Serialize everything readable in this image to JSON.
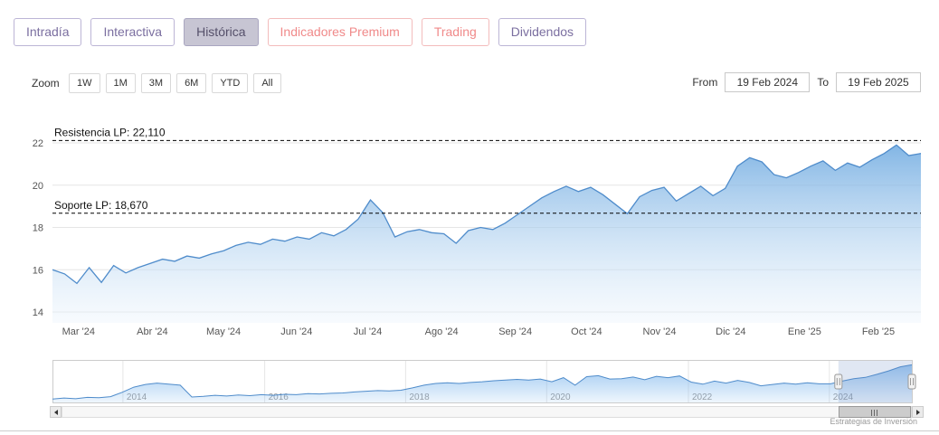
{
  "tabs": [
    {
      "label": "Intradía",
      "style": "purple",
      "selected": false
    },
    {
      "label": "Interactiva",
      "style": "purple",
      "selected": false
    },
    {
      "label": "Histórica",
      "style": "purple",
      "selected": true
    },
    {
      "label": "Indicadores Premium",
      "style": "salmon",
      "selected": false
    },
    {
      "label": "Trading",
      "style": "salmon",
      "selected": false
    },
    {
      "label": "Dividendos",
      "style": "purple",
      "selected": false
    }
  ],
  "toolbar": {
    "zoom_label": "Zoom",
    "range_buttons": [
      "1W",
      "1M",
      "3M",
      "6M",
      "YTD",
      "All"
    ],
    "from_label": "From",
    "from_value": "19 Feb 2024",
    "to_label": "To",
    "to_value": "19 Feb 2025"
  },
  "chart_data": {
    "type": "area",
    "title": "",
    "legend": false,
    "grid": true,
    "annotations": [
      {
        "label": "Resistencia LP: 22,110",
        "value": 22.11
      },
      {
        "label": "Soporte LP: 18,670",
        "value": 18.67
      }
    ],
    "main": {
      "xlabel": "",
      "ylabel": "",
      "ylim": [
        13.4,
        22.8
      ],
      "yticks": [
        14,
        16,
        18,
        20,
        22
      ],
      "xticks": [
        {
          "label": "Mar '24",
          "f": 0.03
        },
        {
          "label": "Abr '24",
          "f": 0.115
        },
        {
          "label": "May '24",
          "f": 0.197
        },
        {
          "label": "Jun '24",
          "f": 0.281
        },
        {
          "label": "Jul '24",
          "f": 0.363
        },
        {
          "label": "Ago '24",
          "f": 0.448
        },
        {
          "label": "Sep '24",
          "f": 0.533
        },
        {
          "label": "Oct '24",
          "f": 0.615
        },
        {
          "label": "Nov '24",
          "f": 0.699
        },
        {
          "label": "Dic '24",
          "f": 0.781
        },
        {
          "label": "Ene '25",
          "f": 0.866
        },
        {
          "label": "Feb '25",
          "f": 0.951
        }
      ],
      "values": [
        16.0,
        15.8,
        15.35,
        16.1,
        15.4,
        16.2,
        15.85,
        16.1,
        16.3,
        16.5,
        16.4,
        16.65,
        16.55,
        16.75,
        16.9,
        17.15,
        17.3,
        17.2,
        17.45,
        17.35,
        17.55,
        17.45,
        17.75,
        17.6,
        17.9,
        18.4,
        19.3,
        18.7,
        17.55,
        17.8,
        17.9,
        17.75,
        17.7,
        17.25,
        17.85,
        18.0,
        17.9,
        18.2,
        18.6,
        19.0,
        19.4,
        19.7,
        19.95,
        19.7,
        19.9,
        19.55,
        19.1,
        18.65,
        19.45,
        19.75,
        19.9,
        19.25,
        19.6,
        19.95,
        19.5,
        19.85,
        20.9,
        21.3,
        21.1,
        20.5,
        20.35,
        20.6,
        20.9,
        21.15,
        20.7,
        21.05,
        20.85,
        21.2,
        21.5,
        21.9,
        21.4,
        21.5
      ]
    },
    "navigator": {
      "ylim": [
        10.5,
        22.5
      ],
      "xticks": [
        {
          "label": "2014",
          "f": 0.082
        },
        {
          "label": "2016",
          "f": 0.247
        },
        {
          "label": "2018",
          "f": 0.411
        },
        {
          "label": "2020",
          "f": 0.575
        },
        {
          "label": "2022",
          "f": 0.74
        },
        {
          "label": "2024",
          "f": 0.904
        }
      ],
      "values": [
        11.5,
        11.8,
        11.6,
        12.0,
        11.9,
        12.2,
        13.5,
        15.0,
        15.8,
        16.2,
        15.9,
        15.6,
        12.1,
        12.3,
        12.6,
        12.4,
        12.7,
        12.5,
        12.8,
        12.6,
        12.9,
        12.8,
        13.1,
        13.0,
        13.2,
        13.3,
        13.6,
        13.8,
        14.0,
        13.9,
        14.1,
        14.8,
        15.6,
        16.1,
        16.3,
        16.1,
        16.4,
        16.6,
        16.9,
        17.1,
        17.3,
        17.1,
        17.4,
        16.6,
        17.8,
        15.6,
        18.1,
        18.4,
        17.4,
        17.5,
        18.0,
        17.2,
        18.2,
        17.8,
        18.3,
        16.5,
        15.9,
        16.8,
        16.2,
        17.0,
        16.4,
        15.4,
        15.8,
        16.2,
        15.9,
        16.3,
        16.0,
        16.0,
        16.8,
        17.5,
        17.9,
        18.8,
        19.8,
        21.0,
        21.6
      ],
      "selected_from_f": 0.9145
    }
  },
  "colors": {
    "line": "#4f8ccb",
    "area_top": "rgba(109,169,224,0.85)",
    "area_bottom": "rgba(233,243,252,0.35)",
    "nav_top": "rgba(124,181,236,0.75)",
    "nav_bottom": "rgba(124,181,236,0.12)",
    "mask": "rgba(102,133,194,0.2)",
    "accent_purple": "#7b6fa0",
    "accent_salmon": "#f08a8a"
  },
  "credit": "Estrategias de Inversión"
}
